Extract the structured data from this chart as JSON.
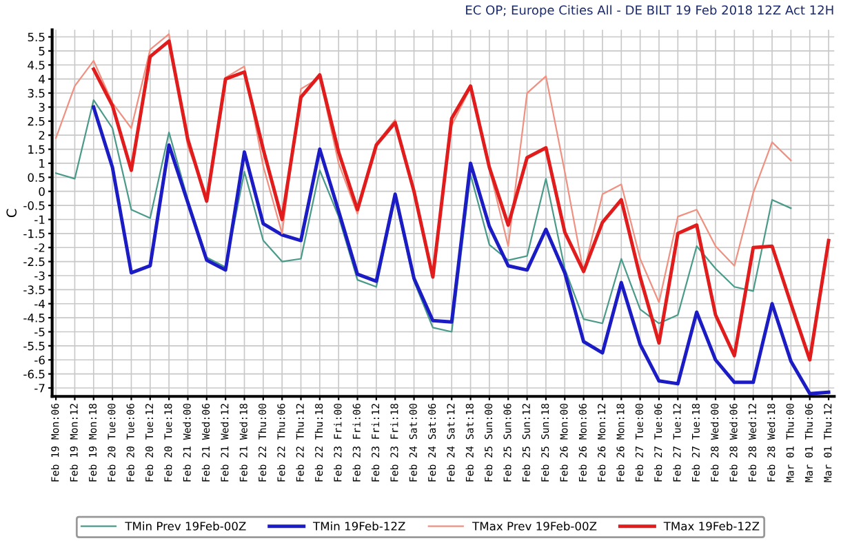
{
  "chart_data": {
    "type": "line",
    "title": "EC OP; Europe Cities All - DE BILT 19 Feb 2018 12Z Act 12H",
    "ylabel": "C",
    "categories": [
      "Feb 19 Mon:06",
      "Feb 19 Mon:12",
      "Feb 19 Mon:18",
      "Feb 20 Tue:00",
      "Feb 20 Tue:06",
      "Feb 20 Tue:12",
      "Feb 20 Tue:18",
      "Feb 21 Wed:00",
      "Feb 21 Wed:06",
      "Feb 21 Wed:12",
      "Feb 21 Wed:18",
      "Feb 22 Thu:00",
      "Feb 22 Thu:06",
      "Feb 22 Thu:12",
      "Feb 22 Thu:18",
      "Feb 23 Fri:00",
      "Feb 23 Fri:06",
      "Feb 23 Fri:12",
      "Feb 23 Fri:18",
      "Feb 24 Sat:00",
      "Feb 24 Sat:06",
      "Feb 24 Sat:12",
      "Feb 24 Sat:18",
      "Feb 25 Sun:00",
      "Feb 25 Sun:06",
      "Feb 25 Sun:12",
      "Feb 25 Sun:18",
      "Feb 26 Mon:00",
      "Feb 26 Mon:06",
      "Feb 26 Mon:12",
      "Feb 26 Mon:18",
      "Feb 27 Tue:00",
      "Feb 27 Tue:06",
      "Feb 27 Tue:12",
      "Feb 27 Tue:18",
      "Feb 28 Wed:00",
      "Feb 28 Wed:06",
      "Feb 28 Wed:12",
      "Feb 28 Wed:18",
      "Mar 01 Thu:00",
      "Mar 01 Thu:06",
      "Mar 01 Thu:12"
    ],
    "series": [
      {
        "name": "TMin Prev 19Feb-00Z",
        "color": "#4a9a8a",
        "values": [
          0.65,
          0.45,
          3.25,
          2.25,
          -0.65,
          -0.95,
          2.1,
          -0.3,
          -2.35,
          -2.7,
          0.7,
          -1.75,
          -2.5,
          -2.4,
          0.75,
          -0.9,
          -3.15,
          -3.4,
          -0.25,
          -3.2,
          -4.85,
          -5.0,
          0.6,
          -1.9,
          -2.45,
          -2.3,
          0.45,
          -2.75,
          -4.55,
          -4.7,
          -2.4,
          -4.2,
          -4.7,
          -4.4,
          -1.95,
          -2.75,
          -3.4,
          -3.55,
          -0.3,
          -0.6,
          null,
          null
        ]
      },
      {
        "name": "TMin 19Feb-12Z",
        "color": "#1c1cc4",
        "values": [
          null,
          null,
          3.0,
          0.85,
          -2.9,
          -2.65,
          1.65,
          -0.4,
          -2.45,
          -2.8,
          1.4,
          -1.15,
          -1.55,
          -1.75,
          1.5,
          -0.7,
          -2.95,
          -3.2,
          -0.1,
          -3.1,
          -4.6,
          -4.65,
          1.0,
          -1.25,
          -2.65,
          -2.8,
          -1.35,
          -2.9,
          -5.35,
          -5.75,
          -3.25,
          -5.45,
          -6.75,
          -6.85,
          -4.3,
          -6.0,
          -6.8,
          -6.8,
          -4.0,
          -6.05,
          -7.2,
          -7.15
        ]
      },
      {
        "name": "TMax Prev 19Feb-00Z",
        "color": "#f09080",
        "values": [
          1.9,
          3.75,
          4.65,
          3.15,
          2.25,
          5.05,
          5.6,
          1.6,
          -0.15,
          4.05,
          4.45,
          0.9,
          -1.5,
          3.65,
          4.05,
          1.0,
          -0.8,
          1.7,
          2.55,
          0.0,
          -2.95,
          2.35,
          3.7,
          0.8,
          -1.95,
          3.5,
          4.1,
          0.7,
          -2.9,
          -0.1,
          0.25,
          -2.4,
          -3.95,
          -0.9,
          -0.65,
          -1.95,
          -2.65,
          -0.05,
          1.75,
          1.1,
          null,
          null
        ]
      },
      {
        "name": "TMax 19Feb-12Z",
        "color": "#e01c1c",
        "values": [
          null,
          null,
          4.35,
          3.05,
          0.75,
          4.8,
          5.35,
          1.85,
          -0.35,
          4.0,
          4.25,
          1.5,
          -1.0,
          3.35,
          4.15,
          1.4,
          -0.65,
          1.65,
          2.45,
          0.0,
          -3.05,
          2.6,
          3.75,
          0.85,
          -1.2,
          1.2,
          1.55,
          -1.45,
          -2.85,
          -1.1,
          -0.3,
          -3.05,
          -5.4,
          -1.5,
          -1.2,
          -4.4,
          -5.85,
          -2.0,
          -1.95,
          -4.0,
          -6.0,
          -1.75
        ]
      }
    ],
    "ylim": [
      -7.3,
      5.75
    ],
    "yticks": [
      -7,
      -6.5,
      -6,
      -5.5,
      -5,
      -4.5,
      -4,
      -3.5,
      -3,
      -2.5,
      -2,
      -1.5,
      -1,
      -0.5,
      0,
      0.5,
      1,
      1.5,
      2,
      2.5,
      3,
      3.5,
      4,
      4.5,
      5,
      5.5
    ],
    "grid": true,
    "legend": "bottom"
  }
}
